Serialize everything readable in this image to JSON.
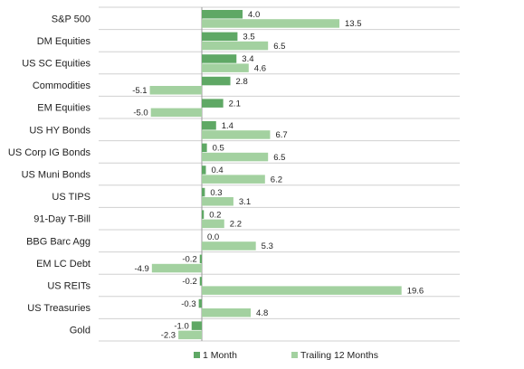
{
  "chart_data": {
    "type": "bar",
    "orientation": "horizontal",
    "categories": [
      "S&P 500",
      "DM Equities",
      "US SC Equities",
      "Commodities",
      "EM Equities",
      "US HY Bonds",
      "US Corp IG Bonds",
      "US Muni Bonds",
      "US TIPS",
      "91-Day T-Bill",
      "BBG Barc Agg",
      "EM LC Debt",
      "US REITs",
      "US Treasuries",
      "Gold"
    ],
    "series": [
      {
        "name": "1 Month",
        "color": "#5fa865",
        "values": [
          4.0,
          3.5,
          3.4,
          2.8,
          2.1,
          1.4,
          0.5,
          0.4,
          0.3,
          0.2,
          0.0,
          -0.2,
          -0.2,
          -0.3,
          -1.0
        ],
        "labels": [
          "4.0",
          "3.5",
          "3.4",
          "2.8",
          "2.1",
          "1.4",
          "0.5",
          "0.4",
          "0.3",
          "0.2",
          "0.0",
          "-0.2",
          "-0.2",
          "-0.3",
          "-1.0"
        ]
      },
      {
        "name": "Trailing 12 Months",
        "color": "#a3d1a0",
        "values": [
          13.5,
          6.5,
          4.6,
          -5.1,
          -5.0,
          6.7,
          6.5,
          6.2,
          3.1,
          2.2,
          5.3,
          -4.9,
          19.6,
          4.8,
          -2.3
        ],
        "labels": [
          "13.5",
          "6.5",
          "4.6",
          "-5.1",
          "-5.0",
          "6.7",
          "6.5",
          "6.2",
          "3.1",
          "2.2",
          "5.3",
          "-4.9",
          "19.6",
          "4.8",
          "-2.3"
        ]
      }
    ],
    "title": "",
    "xlabel": "",
    "ylabel": "",
    "xlim": [
      -7,
      25
    ],
    "grid": "horizontal separators between categories",
    "legend_position": "bottom"
  }
}
